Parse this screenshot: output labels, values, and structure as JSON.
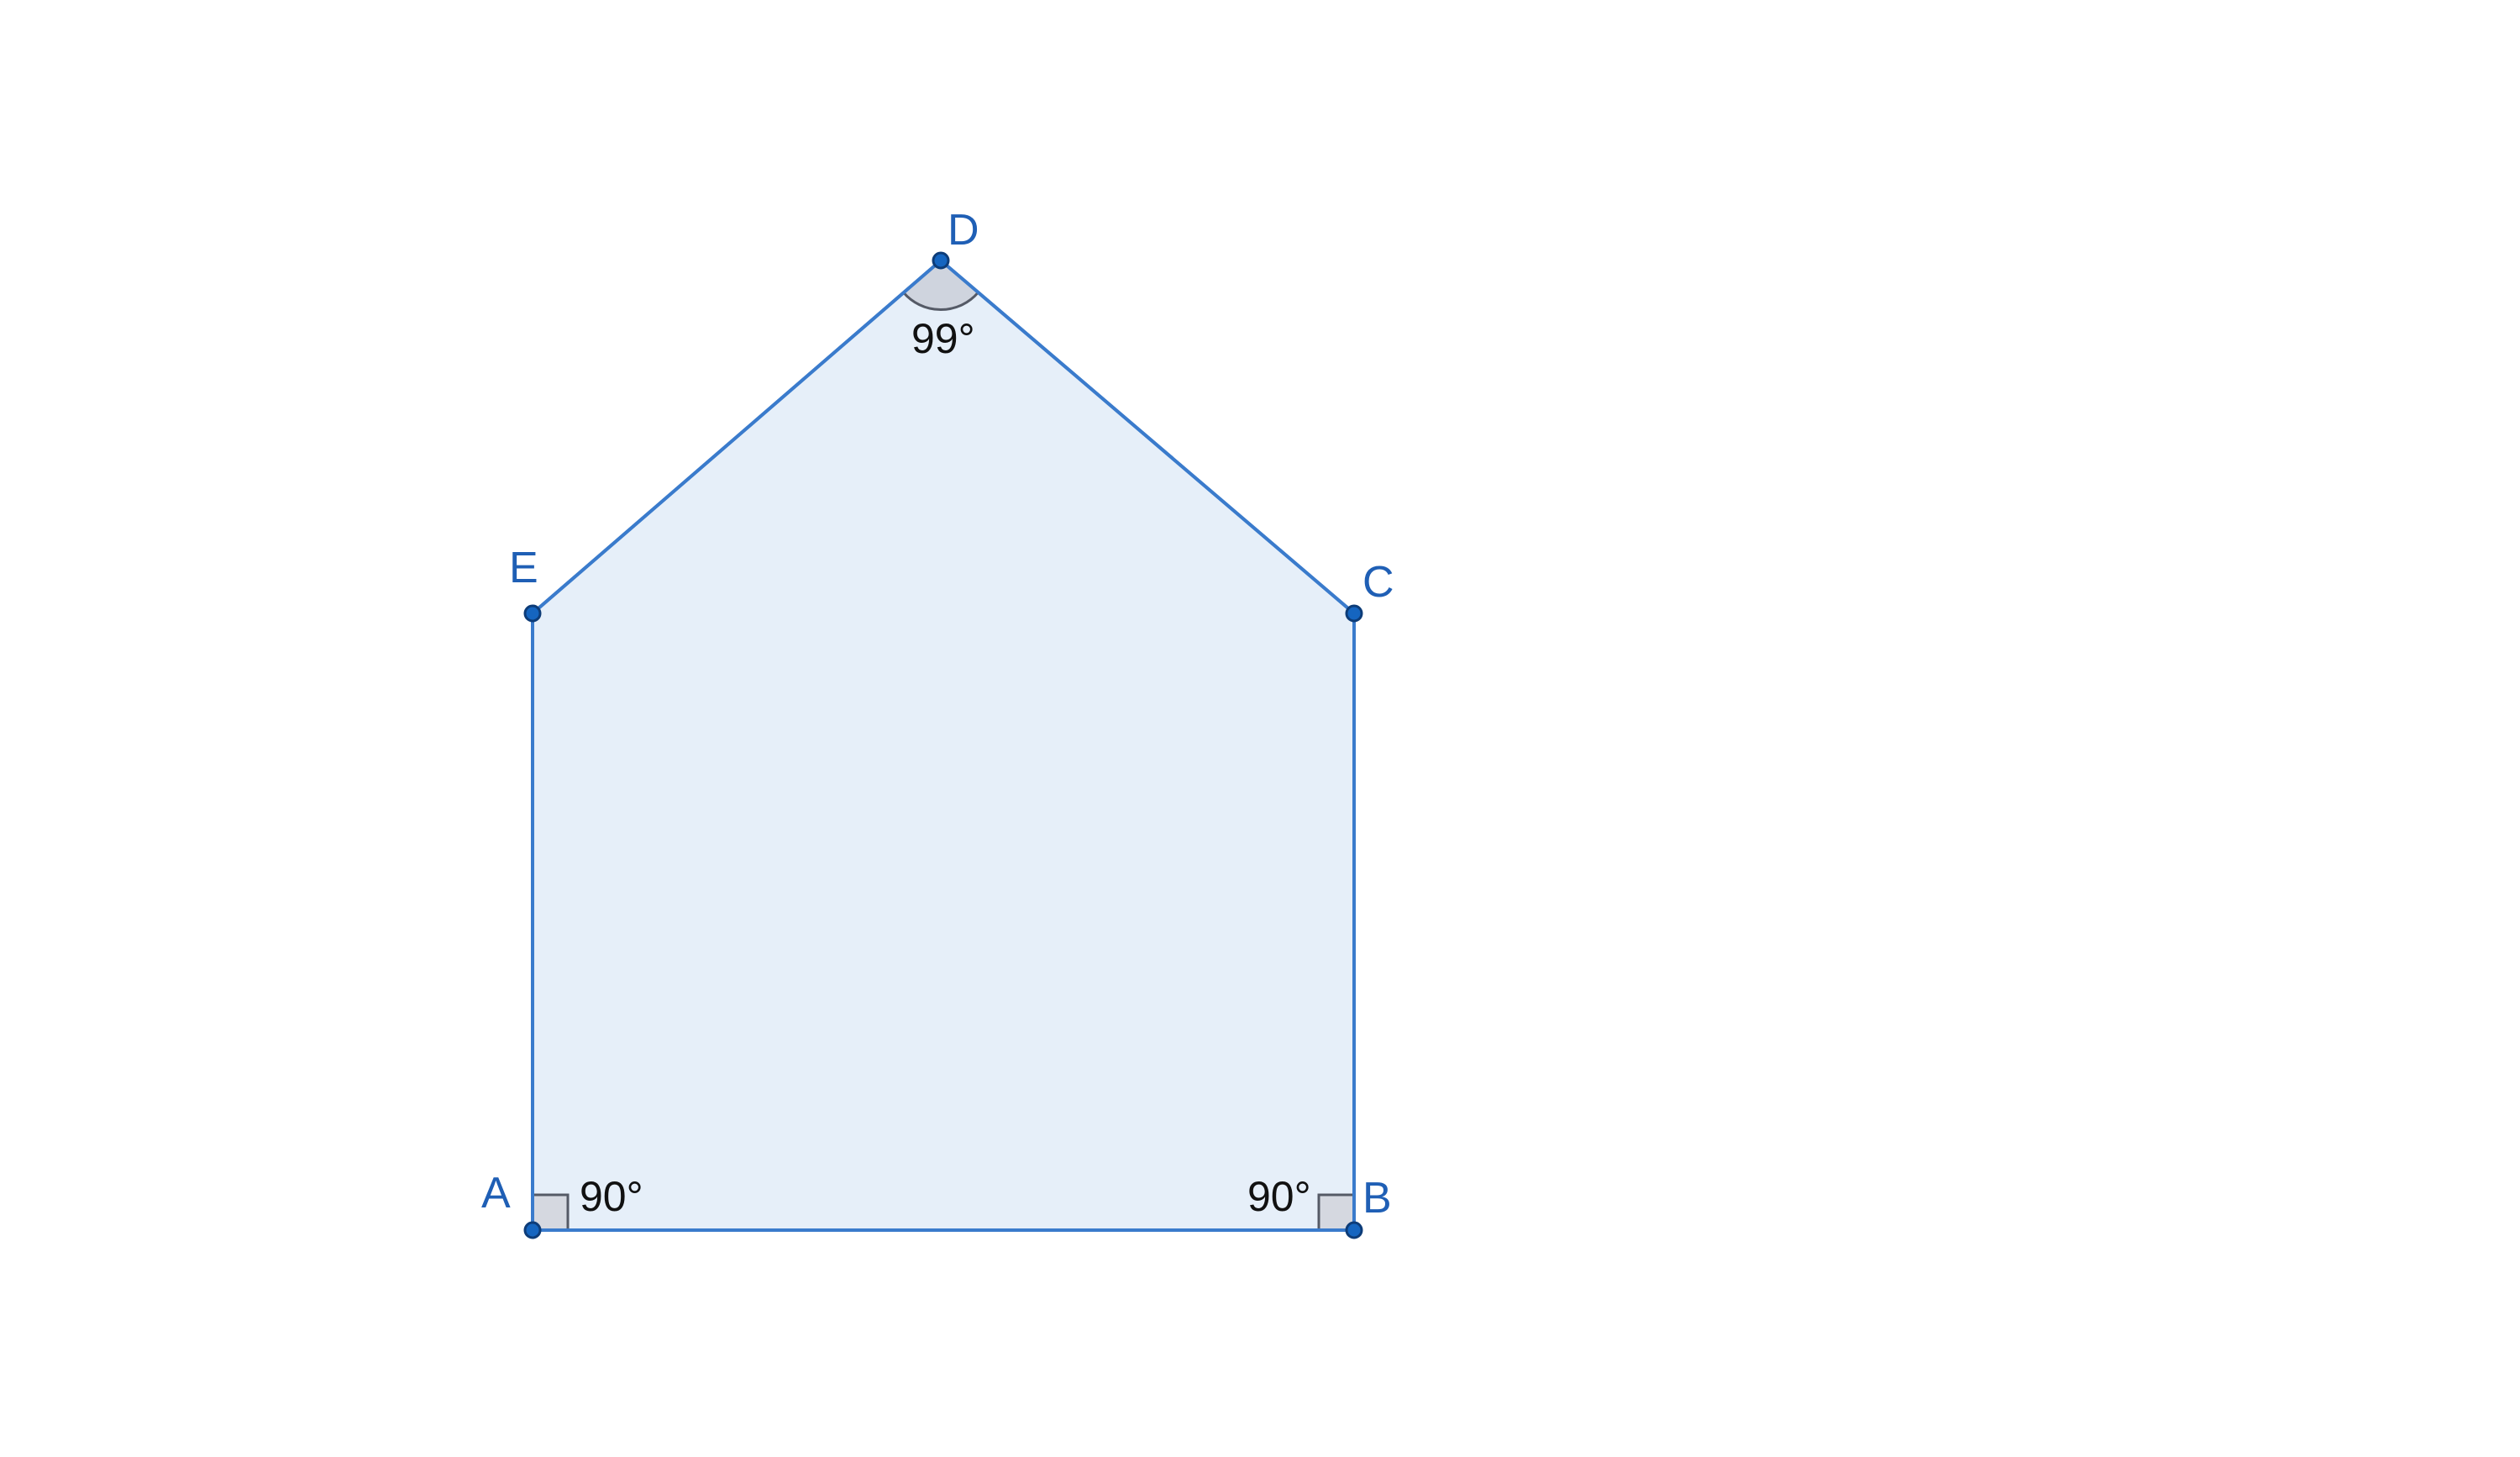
{
  "diagram": {
    "shape": "pentagon",
    "colors": {
      "fill": "#e6eff9",
      "stroke": "#3a7bcc",
      "point_fill": "#1565c0",
      "point_stroke": "#0d3c78",
      "label": "#1f5fb5",
      "angle_text": "#111111",
      "marker_fill": "#d5d8e0",
      "marker_stroke": "#555a66"
    },
    "points": {
      "A": "A",
      "B": "B",
      "C": "C",
      "D": "D",
      "E": "E"
    },
    "angles": {
      "A": "90°",
      "B": "90°",
      "D": "99°"
    }
  }
}
